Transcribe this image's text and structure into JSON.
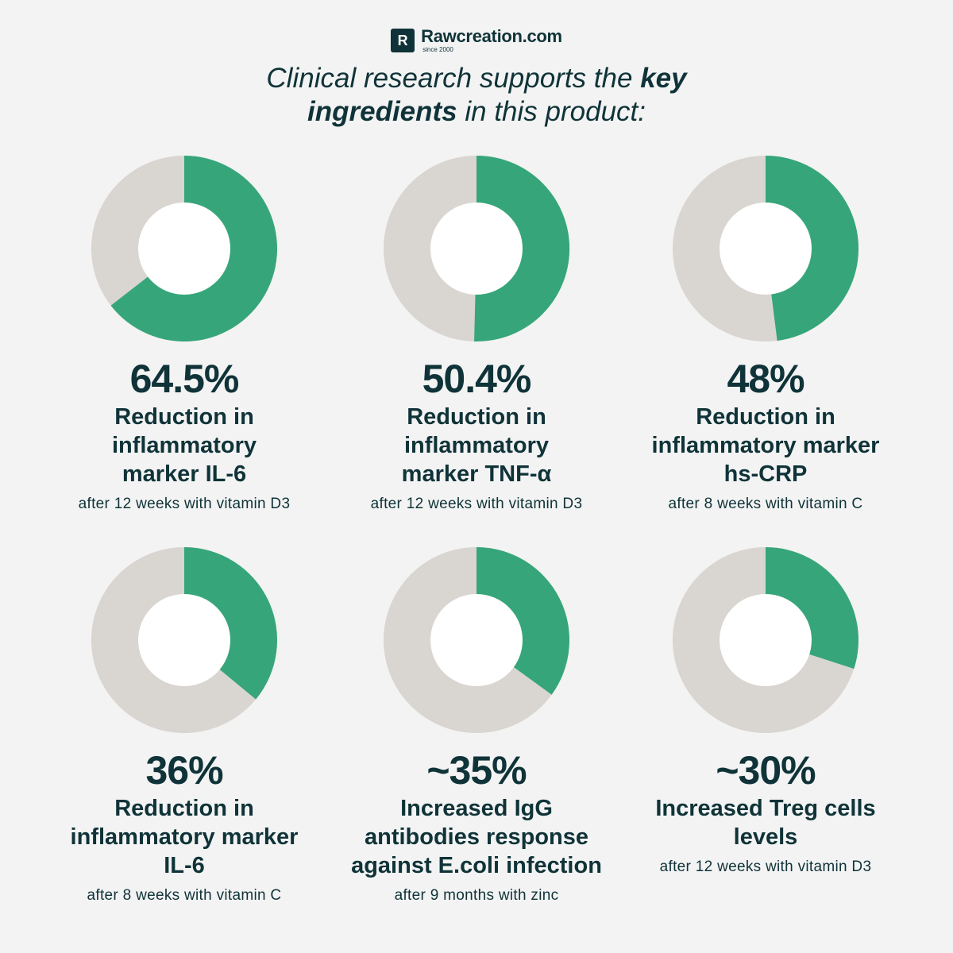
{
  "brand": {
    "mark": "R",
    "name": "Rawcreation.com",
    "since": "since 2000"
  },
  "headline": {
    "part1": "Clinical research supports the ",
    "bold1": "key",
    "bold2": "ingredients",
    "part2": " in this product:"
  },
  "colors": {
    "fill": "#36a67a",
    "track": "#d9d5d0",
    "hole": "#f3f3f3",
    "text": "#0f3338"
  },
  "chart_data": [
    {
      "type": "pie",
      "value": 64.5,
      "value_label": "64.5%",
      "label_lines": [
        "Reduction in",
        "inflammatory",
        "marker IL-6"
      ],
      "note": "after 12 weeks with vitamin D3"
    },
    {
      "type": "pie",
      "value": 50.4,
      "value_label": "50.4%",
      "label_lines": [
        "Reduction in",
        "inflammatory",
        "marker TNF-α"
      ],
      "note": "after 12 weeks with vitamin D3"
    },
    {
      "type": "pie",
      "value": 48,
      "value_label": "48%",
      "label_lines": [
        "Reduction in",
        "inflammatory marker",
        "hs-CRP"
      ],
      "note": "after 8 weeks with vitamin C"
    },
    {
      "type": "pie",
      "value": 36,
      "value_label": "36%",
      "label_lines": [
        "Reduction in",
        "inflammatory marker",
        "IL-6"
      ],
      "note": "after 8 weeks with vitamin C"
    },
    {
      "type": "pie",
      "value": 35,
      "value_label": "~35%",
      "label_lines": [
        "Increased IgG",
        "antibodies response",
        "against E.coli infection"
      ],
      "note": "after 9 months with zinc"
    },
    {
      "type": "pie",
      "value": 30,
      "value_label": "~30%",
      "label_lines": [
        "Increased Treg cells",
        "levels"
      ],
      "note": "after 12 weeks with vitamin D3"
    }
  ]
}
